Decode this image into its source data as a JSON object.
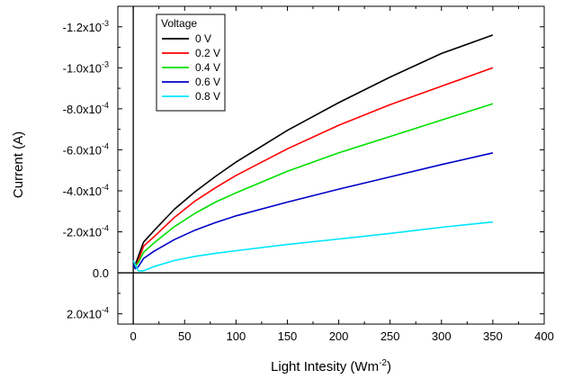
{
  "chart_data": {
    "type": "line",
    "xlabel": "Light Intesity (Wm",
    "xlabel_sup": "-2",
    "xlabel_end": ")",
    "ylabel": "Current (A)",
    "xlim": [
      -15,
      400
    ],
    "ylim": [
      0.00025,
      -0.0013
    ],
    "y_inverted": true,
    "x_ticks": [
      0,
      50,
      100,
      150,
      200,
      250,
      300,
      350,
      400
    ],
    "x_tick_labels": [
      "0",
      "50",
      "100",
      "150",
      "200",
      "250",
      "300",
      "350",
      "400"
    ],
    "y_ticks": [
      0.0002,
      0,
      -0.0002,
      -0.0004,
      -0.0006,
      -0.0008,
      -0.001,
      -0.0012
    ],
    "y_tick_labels": [
      {
        "mant": "2.0x10",
        "exp": "-4"
      },
      {
        "mant": "0.0",
        "exp": ""
      },
      {
        "mant": "-2.0x10",
        "exp": "-4"
      },
      {
        "mant": "-4.0x10",
        "exp": "-4"
      },
      {
        "mant": "-6.0x10",
        "exp": "-4"
      },
      {
        "mant": "-8.0x10",
        "exp": "-4"
      },
      {
        "mant": "-1.0x10",
        "exp": "-3"
      },
      {
        "mant": "-1.2x10",
        "exp": "-3"
      }
    ],
    "zero_lines": true,
    "legend": {
      "title": "Voltage",
      "placement": "top-left"
    },
    "series": [
      {
        "name": "0 V",
        "color": "#000000",
        "x": [
          0,
          2,
          5,
          10,
          20,
          40,
          60,
          80,
          100,
          150,
          200,
          250,
          300,
          350
        ],
        "y": [
          -4e-05,
          -4e-05,
          -8e-05,
          -0.00015,
          -0.000205,
          -0.00031,
          -0.000395,
          -0.00047,
          -0.00054,
          -0.000695,
          -0.00083,
          -0.000955,
          -0.00107,
          -0.00116
        ]
      },
      {
        "name": "0.2 V",
        "color": "#ff0000",
        "x": [
          0,
          2,
          5,
          10,
          20,
          40,
          60,
          80,
          100,
          150,
          200,
          250,
          300,
          350
        ],
        "y": [
          -4e-05,
          -3e-05,
          -6e-05,
          -0.00013,
          -0.000175,
          -0.00027,
          -0.00035,
          -0.000415,
          -0.000475,
          -0.000605,
          -0.00072,
          -0.00082,
          -0.00091,
          -0.001
        ]
      },
      {
        "name": "0.4 V",
        "color": "#00e000",
        "x": [
          0,
          2,
          5,
          10,
          20,
          40,
          60,
          80,
          100,
          150,
          200,
          250,
          300,
          350
        ],
        "y": [
          -4e-05,
          -3e-05,
          -5e-05,
          -0.0001,
          -0.000145,
          -0.000225,
          -0.00029,
          -0.000345,
          -0.00039,
          -0.000495,
          -0.000585,
          -0.000665,
          -0.000745,
          -0.000825
        ]
      },
      {
        "name": "0.6 V",
        "color": "#0000c8",
        "x": [
          0,
          2,
          5,
          10,
          20,
          40,
          60,
          80,
          100,
          150,
          200,
          250,
          300,
          350
        ],
        "y": [
          -4e-05,
          -2e-05,
          -3e-05,
          -7e-05,
          -0.000105,
          -0.000162,
          -0.000208,
          -0.000245,
          -0.000278,
          -0.000345,
          -0.000408,
          -0.000468,
          -0.000528,
          -0.000585
        ]
      },
      {
        "name": "0.8 V",
        "color": "#00e6ff",
        "x": [
          0,
          2,
          5,
          10,
          20,
          40,
          60,
          80,
          100,
          150,
          200,
          250,
          300,
          350
        ],
        "y": [
          -6e-05,
          -4e-05,
          -1e-05,
          -1e-05,
          -3e-05,
          -6e-05,
          -8e-05,
          -9.5e-05,
          -0.000108,
          -0.000138,
          -0.000165,
          -0.000192,
          -0.000222,
          -0.000248
        ]
      }
    ]
  }
}
